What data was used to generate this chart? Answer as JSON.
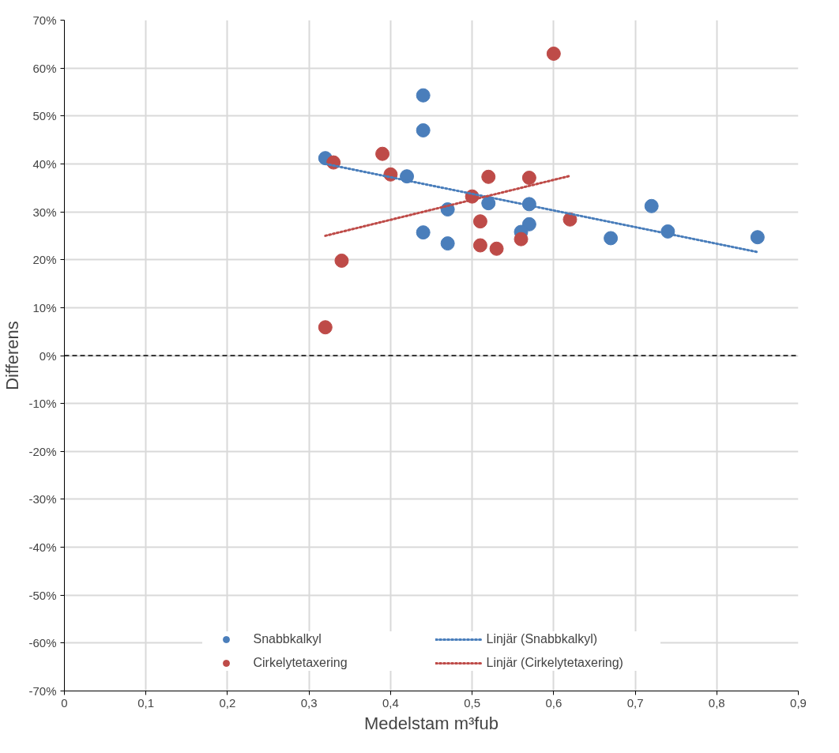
{
  "chart_data": {
    "type": "scatter",
    "xlabel": "Medelstam m³fub",
    "ylabel": "Differens",
    "xlim": [
      0,
      0.9
    ],
    "ylim": [
      -70,
      70
    ],
    "xticks": [
      0,
      {
        "value": 0.1,
        "label": "0,1"
      },
      {
        "value": 0.2,
        "label": "0,2"
      },
      {
        "value": 0.3,
        "label": "0,3"
      },
      {
        "value": 0.4,
        "label": "0,4"
      },
      {
        "value": 0.5,
        "label": "0,5"
      },
      {
        "value": 0.6,
        "label": "0,6"
      },
      {
        "value": 0.7,
        "label": "0,7"
      },
      {
        "value": 0.8,
        "label": "0,8"
      },
      {
        "value": 0.9,
        "label": "0,9"
      }
    ],
    "yticks": [
      {
        "value": -70,
        "label": "-70%"
      },
      {
        "value": -60,
        "label": "-60%"
      },
      {
        "value": -50,
        "label": "-50%"
      },
      {
        "value": -40,
        "label": "-40%"
      },
      {
        "value": -30,
        "label": "-30%"
      },
      {
        "value": -20,
        "label": "-20%"
      },
      {
        "value": -10,
        "label": "-10%"
      },
      {
        "value": 0,
        "label": "0%"
      },
      {
        "value": 10,
        "label": "10%"
      },
      {
        "value": 20,
        "label": "20%"
      },
      {
        "value": 30,
        "label": "30%"
      },
      {
        "value": 40,
        "label": "40%"
      },
      {
        "value": 50,
        "label": "50%"
      },
      {
        "value": 60,
        "label": "60%"
      },
      {
        "value": 70,
        "label": "70%"
      }
    ],
    "grid": true,
    "legend": "bottom",
    "marker": "circle",
    "ref_lines": [
      {
        "axis": "y",
        "value": 0,
        "color": "#000000",
        "line_style": "dashed"
      }
    ],
    "series": [
      {
        "name": "Snabbkalkyl",
        "color": "#4a7ebb",
        "x": [
          0.32,
          0.44,
          0.44,
          0.42,
          0.47,
          0.44,
          0.47,
          0.52,
          0.57,
          0.57,
          0.56,
          0.67,
          0.72,
          0.74,
          0.85
        ],
        "values": [
          41.2,
          54.3,
          47.0,
          37.4,
          30.5,
          25.7,
          23.4,
          31.8,
          31.6,
          27.4,
          25.8,
          24.5,
          31.2,
          25.9,
          24.7
        ]
      },
      {
        "name": "Cirkelytetaxering",
        "color": "#be4b48",
        "x": [
          0.32,
          0.33,
          0.34,
          0.39,
          0.4,
          0.5,
          0.51,
          0.51,
          0.52,
          0.53,
          0.56,
          0.57,
          0.6,
          0.62
        ],
        "values": [
          5.9,
          40.3,
          19.8,
          42.1,
          37.8,
          33.2,
          28.0,
          23.0,
          37.3,
          22.3,
          24.3,
          37.1,
          63.0,
          28.4
        ]
      },
      {
        "name": "Linjär (Snabbkalkyl)",
        "type": "line",
        "line_style": "dotted",
        "marker": "none",
        "color": "#4a7ebb",
        "x": [
          0.32,
          0.85
        ],
        "values": [
          40.0,
          21.6
        ]
      },
      {
        "name": "Linjär (Cirkelytetaxering)",
        "type": "line",
        "line_style": "dotted",
        "marker": "none",
        "color": "#be4b48",
        "x": [
          0.32,
          0.62
        ],
        "values": [
          25.0,
          37.5
        ]
      }
    ]
  }
}
